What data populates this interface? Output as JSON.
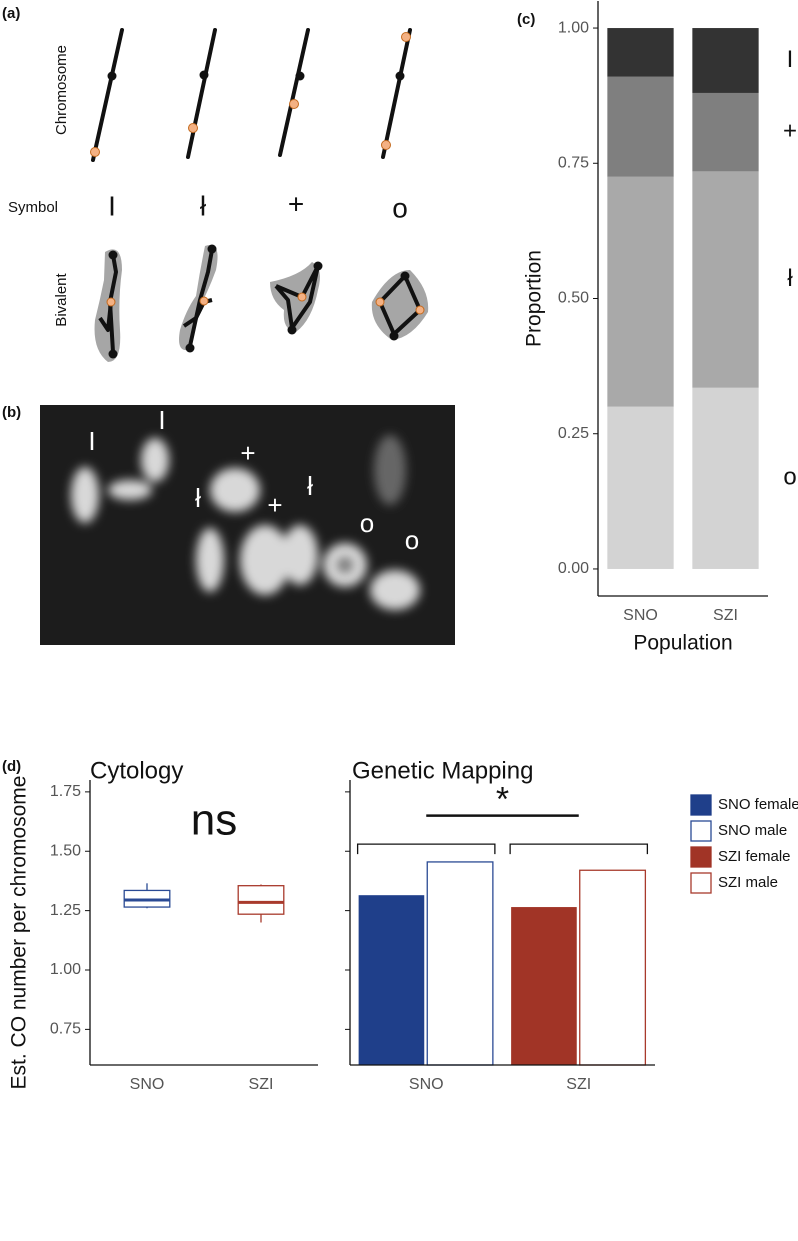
{
  "diagram": {
    "label": "(a)",
    "row_labels": [
      "Chromosome",
      "Symbol",
      "Bivalent"
    ],
    "symbols": [
      "I",
      "ł",
      "+",
      "o"
    ]
  },
  "micrograph": {
    "label": "(b)",
    "markers": [
      "I",
      "I",
      "ł",
      "+",
      "+",
      "ł",
      "o",
      "o"
    ]
  },
  "panel_labels": [
    "(c)",
    "(d)"
  ],
  "chart_data": [
    {
      "type": "stacked_bar",
      "categories": [
        "SNO",
        "SZI"
      ],
      "series": [
        {
          "name": "o",
          "color": "#d3d3d3",
          "values": [
            0.3,
            0.335
          ]
        },
        {
          "name": "ł",
          "color": "#a9a9a9",
          "values": [
            0.425,
            0.4
          ]
        },
        {
          "name": "+",
          "color": "#7f7f7f",
          "values": [
            0.185,
            0.145
          ]
        },
        {
          "name": "I",
          "color": "#333333",
          "values": [
            0.09,
            0.12
          ]
        }
      ],
      "y_label": "Proportion",
      "x_label": "Population",
      "ylim": [
        -0.05,
        1.05
      ],
      "yticks": [
        {
          "value": 0,
          "label": "0.00"
        },
        {
          "value": 0.25,
          "label": "0.25"
        },
        {
          "value": 0.5,
          "label": "0.50"
        },
        {
          "value": 0.75,
          "label": "0.75"
        },
        {
          "value": 1,
          "label": "1.00"
        }
      ]
    },
    {
      "type": "box",
      "title": "Cytology",
      "categories": [
        "SNO",
        "SZI"
      ],
      "boxes": [
        {
          "min": 1.26,
          "q1": 1.265,
          "median": 1.295,
          "q3": 1.335,
          "max": 1.365,
          "color": "#2a4a94"
        },
        {
          "min": 1.2,
          "q1": 1.235,
          "median": 1.285,
          "q3": 1.355,
          "max": 1.36,
          "color": "#a83a2c"
        }
      ],
      "annotation": "ns",
      "y_label": "Est. CO number per chromosome",
      "ylim": [
        0.6,
        1.8
      ],
      "yticks": [
        {
          "value": 0.75,
          "label": "0.75"
        },
        {
          "value": 1,
          "label": "1.00"
        },
        {
          "value": 1.25,
          "label": "1.25"
        },
        {
          "value": 1.5,
          "label": "1.50"
        },
        {
          "value": 1.75,
          "label": "1.75"
        }
      ]
    },
    {
      "type": "bar",
      "title": "Genetic Mapping",
      "categories": [
        "SNO",
        "SZI"
      ],
      "series": [
        {
          "name": "SNO female",
          "color": "#1f3f8a",
          "filled": true,
          "values": [
            1.315,
            null
          ]
        },
        {
          "name": "SNO male",
          "color": "#2a4a94",
          "filled": false,
          "values": [
            1.455,
            null
          ]
        },
        {
          "name": "SZI female",
          "color": "#a13426",
          "filled": true,
          "values": [
            null,
            1.265
          ]
        },
        {
          "name": "SZI male",
          "color": "#a83a2c",
          "filled": false,
          "values": [
            null,
            1.42
          ]
        }
      ],
      "annotation": "*"
    }
  ]
}
